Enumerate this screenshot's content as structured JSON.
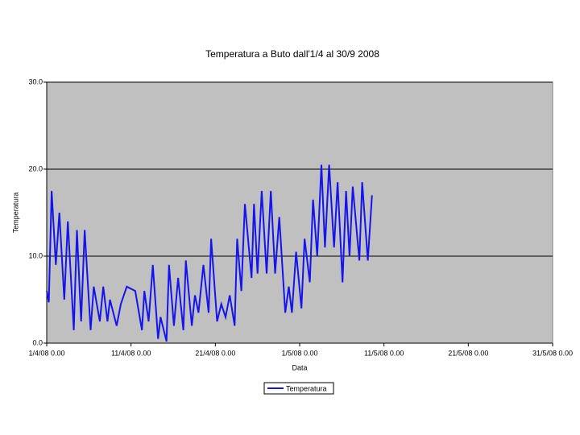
{
  "chart_data": {
    "type": "line",
    "title": "Temperatura a Buto dall'1/4 al 30/9 2008",
    "x_label": "Data",
    "y_label": "Temperatura",
    "x": [
      "2008-04-01T00:00",
      "2008-04-01T06:00",
      "2008-04-01T14:00",
      "2008-04-02T02:00",
      "2008-04-02T12:00",
      "2008-04-03T02:00",
      "2008-04-03T12:00",
      "2008-04-04T05:00",
      "2008-04-04T14:00",
      "2008-04-05T02:00",
      "2008-04-05T12:00",
      "2008-04-06T05:00",
      "2008-04-06T14:00",
      "2008-04-07T07:00",
      "2008-04-07T17:00",
      "2008-04-08T05:00",
      "2008-04-08T12:00",
      "2008-04-09T07:00",
      "2008-04-09T19:00",
      "2008-04-10T12:00",
      "2008-04-11T12:00",
      "2008-04-12T07:00",
      "2008-04-12T14:00",
      "2008-04-13T02:00",
      "2008-04-13T14:00",
      "2008-04-14T05:00",
      "2008-04-14T12:00",
      "2008-04-15T05:00",
      "2008-04-15T12:00",
      "2008-04-16T02:00",
      "2008-04-16T14:00",
      "2008-04-17T05:00",
      "2008-04-17T12:00",
      "2008-04-18T05:00",
      "2008-04-18T14:00",
      "2008-04-19T00:00",
      "2008-04-19T14:00",
      "2008-04-20T05:00",
      "2008-04-20T12:00",
      "2008-04-21T05:00",
      "2008-04-21T17:00",
      "2008-04-22T05:00",
      "2008-04-22T17:00",
      "2008-04-23T07:00",
      "2008-04-23T14:00",
      "2008-04-24T02:00",
      "2008-04-24T12:00",
      "2008-04-25T07:00",
      "2008-04-25T14:00",
      "2008-04-26T00:00",
      "2008-04-26T12:00",
      "2008-04-27T02:00",
      "2008-04-27T14:00",
      "2008-04-28T02:00",
      "2008-04-28T14:00",
      "2008-04-29T07:00",
      "2008-04-29T17:00",
      "2008-04-30T02:00",
      "2008-04-30T14:00",
      "2008-05-01T05:00",
      "2008-05-01T14:00",
      "2008-05-02T05:00",
      "2008-05-02T14:00",
      "2008-05-03T02:00",
      "2008-05-03T14:00",
      "2008-05-04T00:00",
      "2008-05-04T12:00",
      "2008-05-05T02:00",
      "2008-05-05T12:00",
      "2008-05-06T02:00",
      "2008-05-06T12:00",
      "2008-05-06T22:00",
      "2008-05-07T07:00",
      "2008-05-08T02:00",
      "2008-05-08T10:00",
      "2008-05-09T02:00",
      "2008-05-09T14:00"
    ],
    "series": [
      {
        "name": "Temperatura",
        "color": "#1414f0",
        "values": [
          6,
          4.7,
          17.5,
          9,
          15,
          5,
          14,
          1.5,
          13,
          2.5,
          13,
          1.5,
          6.5,
          2.5,
          6.5,
          2.5,
          5,
          2,
          4.5,
          6.5,
          6,
          1.5,
          6,
          2.5,
          9,
          0.5,
          3,
          0.2,
          9,
          2,
          7.5,
          1.5,
          9.5,
          2,
          5.5,
          3.5,
          9,
          3.5,
          12,
          2.5,
          4.5,
          3,
          5.5,
          2,
          12,
          6,
          16,
          7.5,
          16,
          8,
          17.5,
          8,
          17.5,
          8,
          14.5,
          3.5,
          6.5,
          3.5,
          10.5,
          4,
          12,
          7,
          16.5,
          10,
          20.5,
          11,
          20.5,
          11,
          18.5,
          7,
          17.5,
          10,
          18,
          9.5,
          18.5,
          9.5,
          17
        ]
      }
    ],
    "xlim": [
      "2008-04-01T00:00",
      "2008-05-31T00:00"
    ],
    "xticks": [
      {
        "value": "2008-04-01T00:00",
        "label": "1/4/08 0.00"
      },
      {
        "value": "2008-04-11T00:00",
        "label": "11/4/08 0.00"
      },
      {
        "value": "2008-04-21T00:00",
        "label": "21/4/08 0.00"
      },
      {
        "value": "2008-05-01T00:00",
        "label": "1/5/08 0.00"
      },
      {
        "value": "2008-05-11T00:00",
        "label": "11/5/08 0.00"
      },
      {
        "value": "2008-05-21T00:00",
        "label": "21/5/08 0.00"
      },
      {
        "value": "2008-05-31T00:00",
        "label": "31/5/08 0.00"
      }
    ],
    "ylim": [
      0,
      30
    ],
    "yticks": [
      {
        "value": 0,
        "label": "0.0"
      },
      {
        "value": 10,
        "label": "10.0"
      },
      {
        "value": 20,
        "label": "20.0"
      },
      {
        "value": 30,
        "label": "30.0"
      }
    ],
    "grid": true,
    "legend": "bottom"
  }
}
